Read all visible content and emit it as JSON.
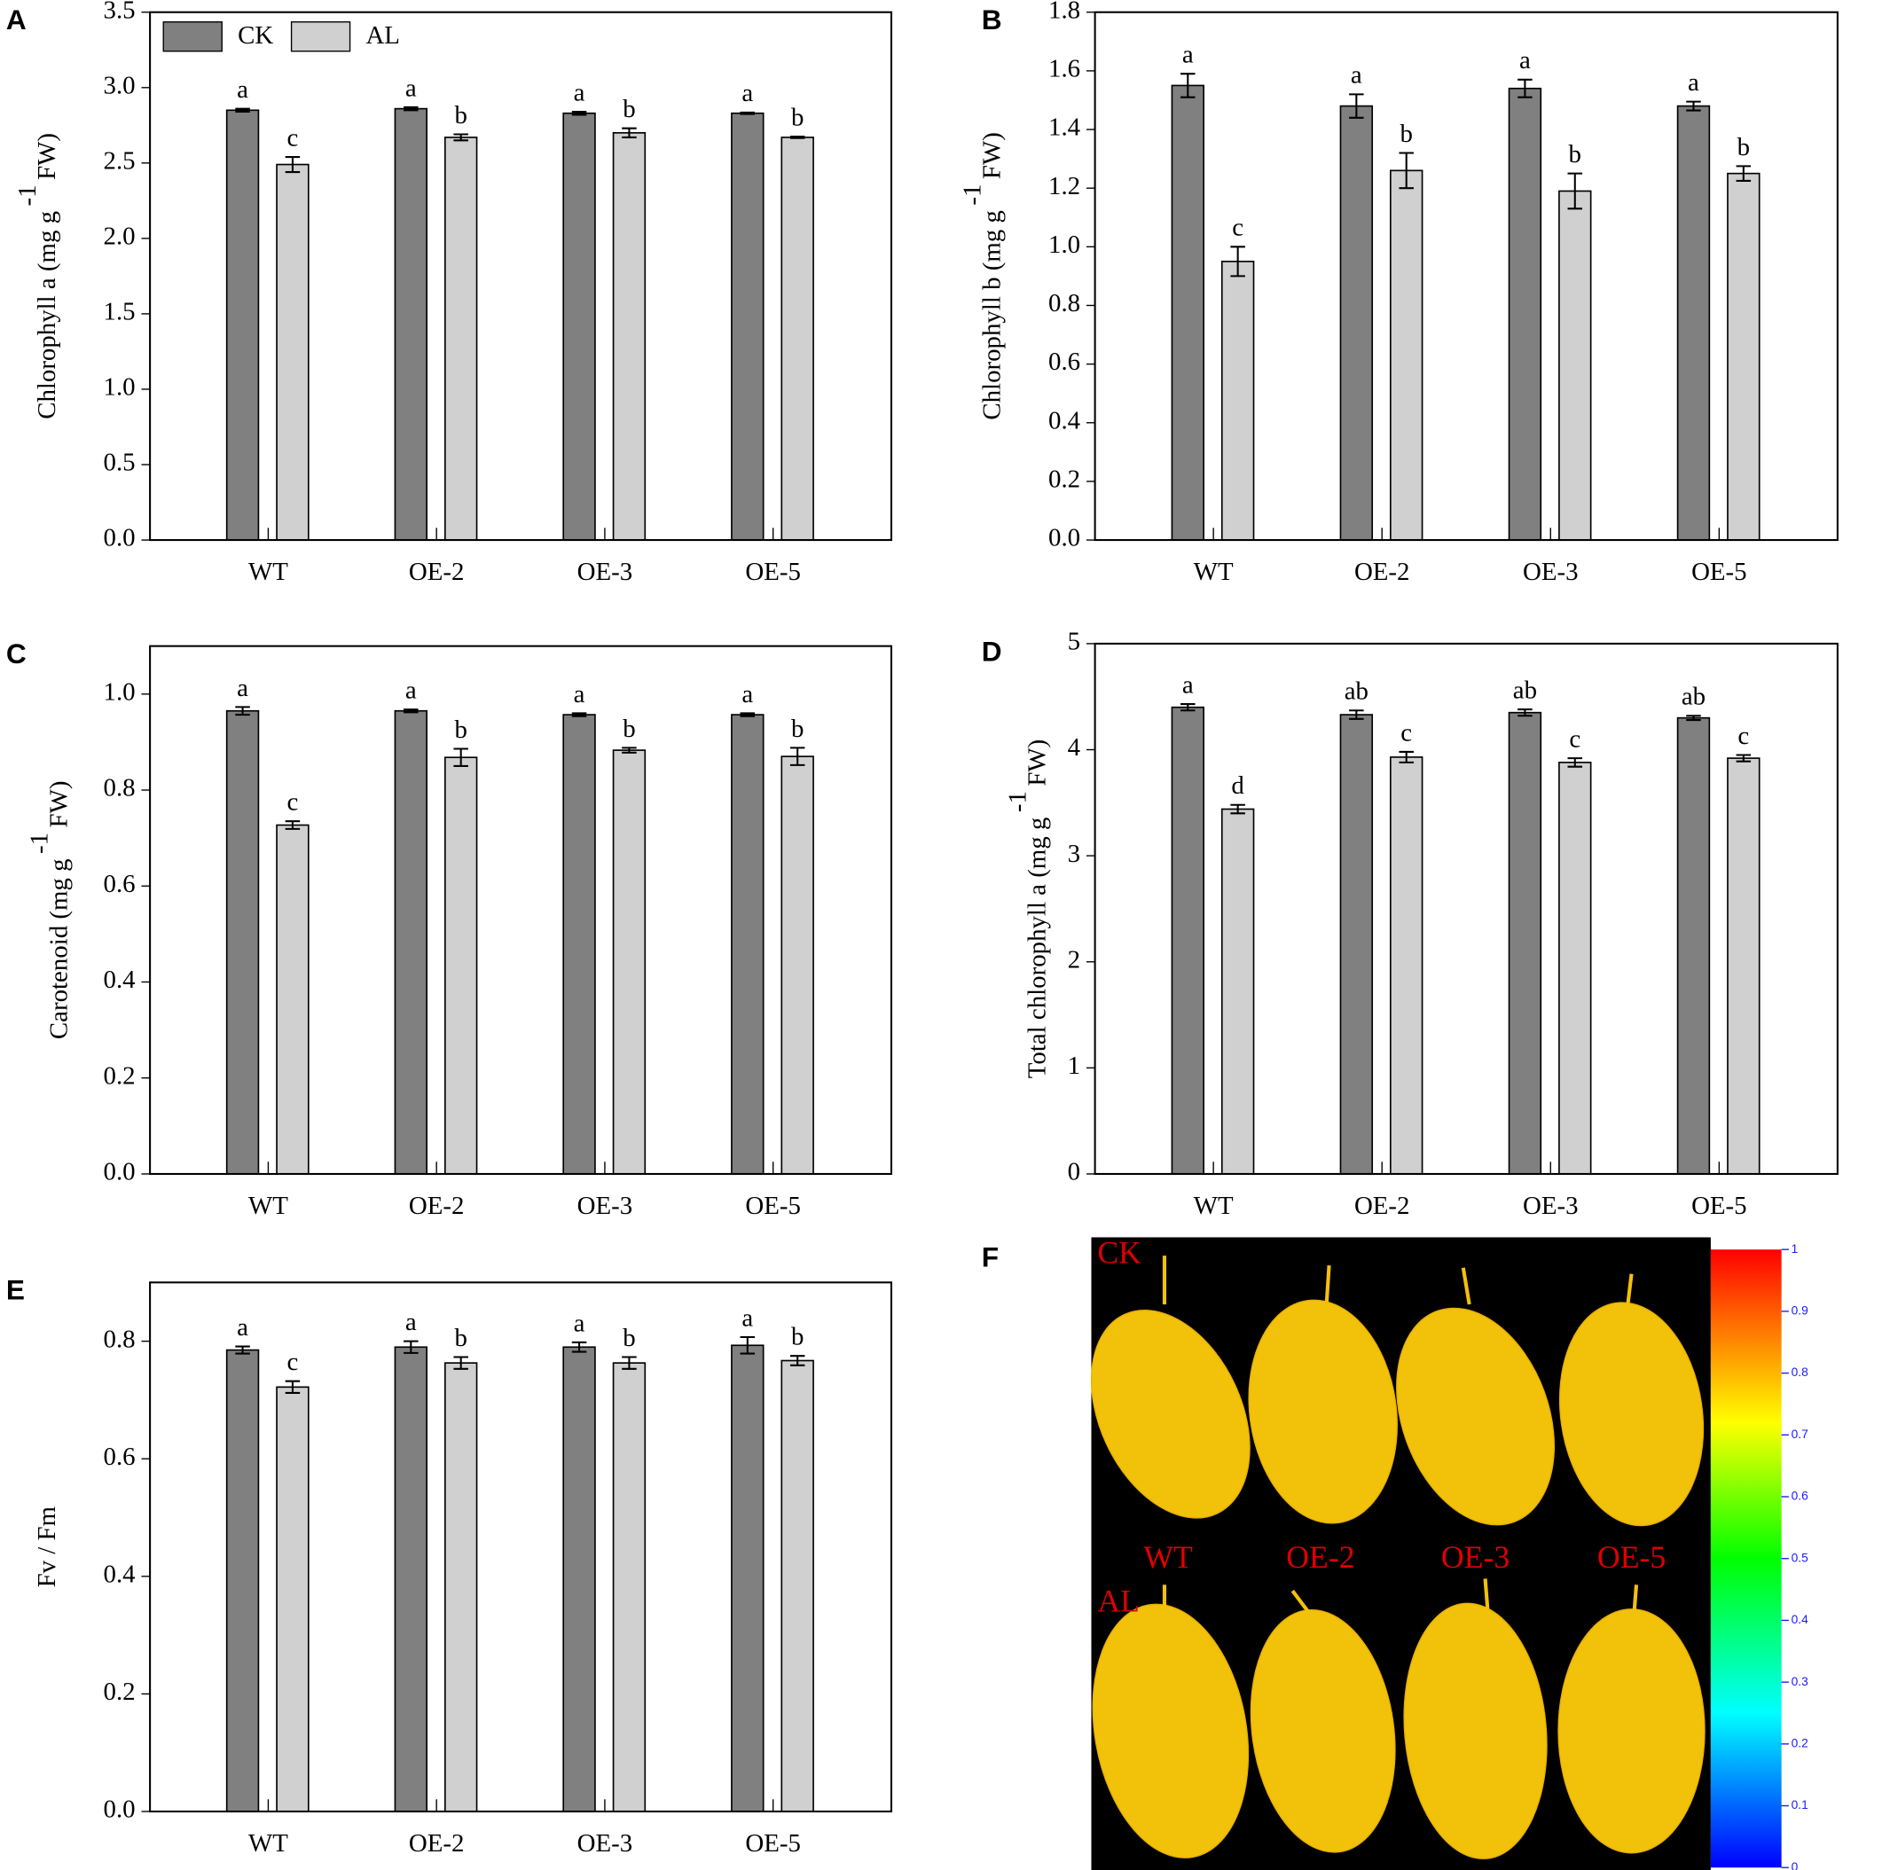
{
  "chart_data": [
    {
      "type": "bar",
      "panel": "A",
      "ylabel": "Chlorophyll a (mg g",
      "ylabel_sup": "-1",
      "ylabel_end": "FW)",
      "categories": [
        "WT",
        "OE-2",
        "OE-3",
        "OE-5"
      ],
      "legend": "top-left",
      "ylim": [
        0,
        3.5
      ],
      "yticks": [
        {
          "value": 0,
          "label": "0.0"
        },
        0.5,
        {
          "value": 1,
          "label": "1.0"
        },
        1.5,
        {
          "value": 2,
          "label": "2.0"
        },
        2.5,
        {
          "value": 3,
          "label": "3.0"
        },
        3.5
      ],
      "series": [
        {
          "name": "CK",
          "color": "#808080",
          "values": [
            2.85,
            2.86,
            2.83,
            2.83
          ],
          "errors": [
            0.01,
            0.01,
            0.01,
            0.005
          ],
          "labels": [
            "a",
            "a",
            "a",
            "a"
          ]
        },
        {
          "name": "AL",
          "color": "#d0d0d0",
          "values": [
            2.49,
            2.67,
            2.7,
            2.67
          ],
          "errors": [
            0.05,
            0.02,
            0.03,
            0.005
          ],
          "labels": [
            "c",
            "b",
            "b",
            "b"
          ]
        }
      ]
    },
    {
      "type": "bar",
      "panel": "B",
      "ylabel": "Chlorophyll b (mg g",
      "ylabel_sup": "-1",
      "ylabel_end": "FW)",
      "categories": [
        "WT",
        "OE-2",
        "OE-3",
        "OE-5"
      ],
      "ylim": [
        0,
        1.8
      ],
      "yticks": [
        {
          "value": 0,
          "label": "0.0"
        },
        0.2,
        0.4,
        0.6,
        0.8,
        {
          "value": 1,
          "label": "1.0"
        },
        1.2,
        1.4,
        1.6,
        1.8
      ],
      "series": [
        {
          "color": "#808080",
          "values": [
            1.55,
            1.48,
            1.54,
            1.48
          ],
          "errors": [
            0.04,
            0.04,
            0.03,
            0.015
          ],
          "labels": [
            "a",
            "a",
            "a",
            "a"
          ]
        },
        {
          "color": "#d0d0d0",
          "values": [
            0.95,
            1.26,
            1.19,
            1.25
          ],
          "errors": [
            0.05,
            0.06,
            0.06,
            0.025
          ],
          "labels": [
            "c",
            "b",
            "b",
            "b"
          ]
        }
      ]
    },
    {
      "type": "bar",
      "panel": "C",
      "ylabel": "Carotenoid (mg g",
      "ylabel_sup": "-1",
      "ylabel_end": "FW)",
      "categories": [
        "WT",
        "OE-2",
        "OE-3",
        "OE-5"
      ],
      "ylim": [
        0,
        1.1
      ],
      "yticks": [
        {
          "value": 0,
          "label": "0.0"
        },
        0.2,
        0.4,
        0.6,
        0.8,
        {
          "value": 1,
          "label": "1.0"
        }
      ],
      "series": [
        {
          "color": "#808080",
          "values": [
            0.965,
            0.965,
            0.957,
            0.957
          ],
          "errors": [
            0.008,
            0.003,
            0.003,
            0.003
          ],
          "labels": [
            "a",
            "a",
            "a",
            "a"
          ]
        },
        {
          "color": "#d0d0d0",
          "values": [
            0.727,
            0.868,
            0.883,
            0.87
          ],
          "errors": [
            0.008,
            0.018,
            0.005,
            0.018
          ],
          "labels": [
            "c",
            "b",
            "b",
            "b"
          ]
        }
      ]
    },
    {
      "type": "bar",
      "panel": "D",
      "ylabel": "Total chlorophyll a (mg g",
      "ylabel_sup": "-1",
      "ylabel_end": "FW)",
      "categories": [
        "WT",
        "OE-2",
        "OE-3",
        "OE-5"
      ],
      "ylim": [
        0,
        5
      ],
      "yticks": [
        0,
        1,
        2,
        3,
        4,
        5
      ],
      "series": [
        {
          "color": "#808080",
          "values": [
            4.4,
            4.33,
            4.35,
            4.3
          ],
          "errors": [
            0.03,
            0.04,
            0.03,
            0.02
          ],
          "labels": [
            "a",
            "ab",
            "ab",
            "ab"
          ]
        },
        {
          "color": "#d0d0d0",
          "values": [
            3.44,
            3.93,
            3.88,
            3.92
          ],
          "errors": [
            0.04,
            0.05,
            0.04,
            0.03
          ],
          "labels": [
            "d",
            "c",
            "c",
            "c"
          ]
        }
      ]
    },
    {
      "type": "bar",
      "panel": "E",
      "ylabel": "Fv / Fm",
      "categories": [
        "WT",
        "OE-2",
        "OE-3",
        "OE-5"
      ],
      "ylim": [
        0,
        0.9
      ],
      "yticks": [
        {
          "value": 0,
          "label": "0.0"
        },
        0.2,
        0.4,
        0.6,
        0.8
      ],
      "series": [
        {
          "color": "#808080",
          "values": [
            0.785,
            0.79,
            0.79,
            0.793
          ],
          "errors": [
            0.006,
            0.01,
            0.008,
            0.014
          ],
          "labels": [
            "a",
            "a",
            "a",
            "a"
          ]
        },
        {
          "color": "#d0d0d0",
          "values": [
            0.722,
            0.763,
            0.763,
            0.767
          ],
          "errors": [
            0.01,
            0.01,
            0.01,
            0.008
          ],
          "labels": [
            "c",
            "b",
            "b",
            "b"
          ]
        }
      ]
    }
  ],
  "image_panel": {
    "panel": "F",
    "row_labels": [
      "CK",
      "AL"
    ],
    "column_labels": [
      "WT",
      "OE-2",
      "OE-3",
      "OE-5"
    ],
    "colorbar_ticks": [
      0,
      0.1,
      0.2,
      0.3,
      0.4,
      0.5,
      0.6,
      0.7,
      0.8,
      0.9,
      1
    ]
  }
}
